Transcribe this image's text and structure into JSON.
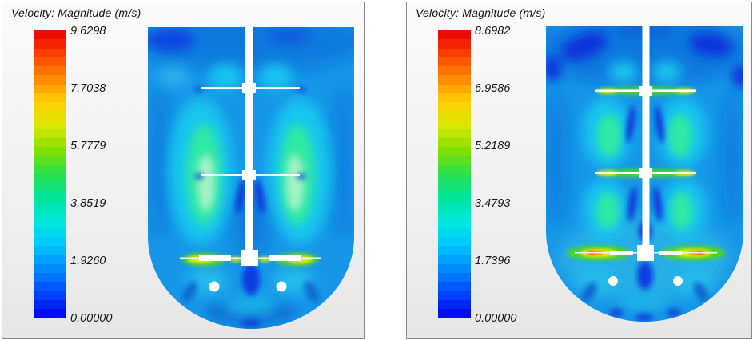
{
  "figure": {
    "background": "#ffffff",
    "panel_border": "#898989"
  },
  "colormap_stops": [
    "#0000e8",
    "#0044ff",
    "#0088ff",
    "#00c4ff",
    "#00e8e0",
    "#00e49c",
    "#28e04c",
    "#84e000",
    "#d8e800",
    "#ffd000",
    "#ff8800",
    "#ff4000",
    "#e80000"
  ],
  "colorbar_bands": 32,
  "panels": [
    {
      "id": "left",
      "title": "Velocity: Magnitude (m/s)",
      "units": "m/s",
      "min": 0.0,
      "max": 9.6298,
      "tick_labels": [
        "9.6298",
        "7.7038",
        "5.7779",
        "3.8519",
        "1.9260",
        "0.00000"
      ]
    },
    {
      "id": "right",
      "title": "Velocity: Magnitude (m/s)",
      "units": "m/s",
      "min": 0.0,
      "max": 8.6982,
      "tick_labels": [
        "8.6982",
        "6.9586",
        "5.2189",
        "3.4793",
        "1.7396",
        "0.00000"
      ]
    }
  ],
  "chart_data": [
    {
      "type": "heatmap",
      "title": "Velocity: Magnitude (m/s)",
      "units": "m/s",
      "value_range": [
        0.0,
        9.6298
      ],
      "colorbar_ticks": [
        9.6298,
        7.7038,
        5.7779,
        3.8519,
        1.926,
        0.0
      ],
      "colormap": "discrete rainbow blue-cyan-green-yellow-red, 32 bands",
      "legend_position": "left",
      "description": "CFD velocity-magnitude contours in a stirred tank with dished bottom: central shaft, two thin upper impellers and a flat-blade bottom impeller, two sparger ports. Peak velocity (yellow-green jets ~6 m/s) at bottom impeller blade tips; cyan/spring-green upwelling plumes between upper impellers; low-velocity navy zones near the surface and under hubs."
    },
    {
      "type": "heatmap",
      "title": "Velocity: Magnitude (m/s)",
      "units": "m/s",
      "value_range": [
        0.0,
        8.6982
      ],
      "colorbar_ticks": [
        8.6982,
        6.9586,
        5.2189,
        3.4793,
        1.7396,
        0.0
      ],
      "colormap": "discrete rainbow blue-cyan-green-yellow-red, 32 bands",
      "legend_position": "left",
      "description": "Same vessel, second operating case: high-velocity yellow-green streaks along all three impellers, orange-red cores (~8 m/s) in the bottom impeller tip jets, pronounced navy low-velocity pockets near the liquid surface."
    }
  ]
}
